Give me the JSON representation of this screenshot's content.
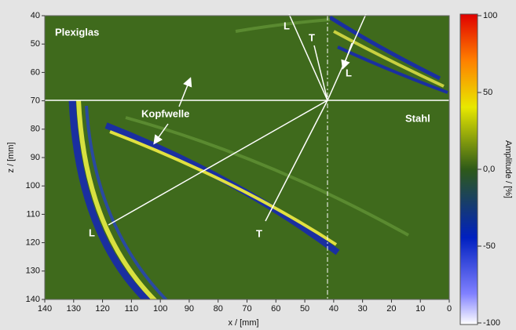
{
  "chart_data": {
    "type": "heatmap",
    "xlabel": "x / [mm]",
    "ylabel": "z / [mm]",
    "xlim": [
      140,
      0
    ],
    "xticks": [
      140,
      130,
      120,
      110,
      100,
      90,
      80,
      70,
      60,
      50,
      40,
      30,
      20,
      10,
      0
    ],
    "ylim": [
      40,
      140
    ],
    "yticks": [
      40,
      50,
      60,
      70,
      80,
      90,
      100,
      110,
      120,
      130,
      140
    ],
    "colorbar": {
      "label": "Amplitude / [%]",
      "lim": [
        -100,
        100
      ],
      "ticks": [
        100,
        50,
        {
          "value": 0,
          "label": "0,0"
        },
        -50,
        -100
      ]
    },
    "annotations": [
      "Plexiglas",
      "Stahl",
      "Kopfwelle",
      "L",
      "T",
      "L",
      "L",
      "T"
    ]
  }
}
